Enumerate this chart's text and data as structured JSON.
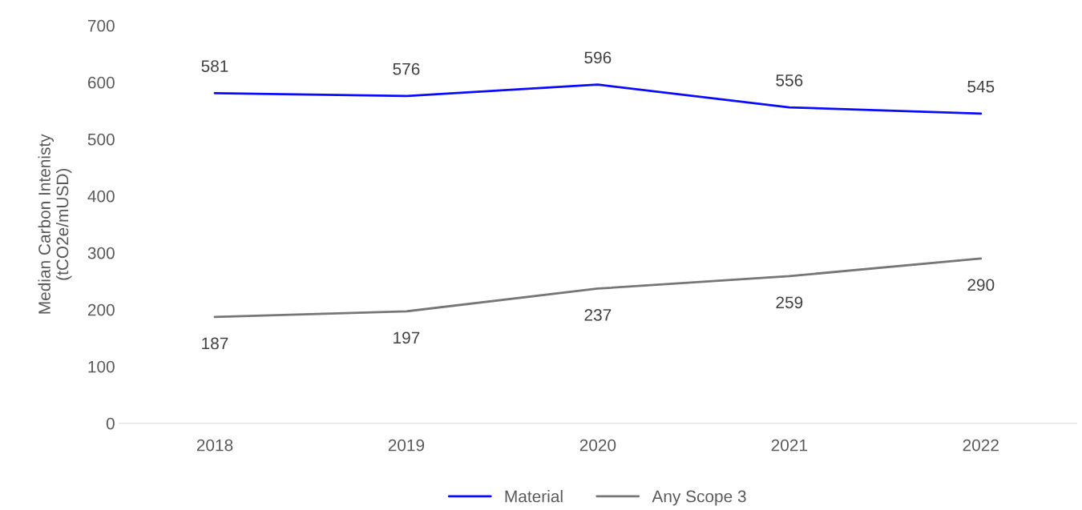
{
  "chart_data": {
    "type": "line",
    "categories": [
      "2018",
      "2019",
      "2020",
      "2021",
      "2022"
    ],
    "series": [
      {
        "name": "Material",
        "color": "#0a0aff",
        "values": [
          581,
          576,
          596,
          556,
          545
        ]
      },
      {
        "name": "Any Scope 3",
        "color": "#767676",
        "values": [
          187,
          197,
          237,
          259,
          290
        ]
      }
    ],
    "ylabel": "Median Carbon Intenisty\n(tCO2e/mUSD)",
    "ylim": [
      0,
      700
    ],
    "yticks": [
      0,
      100,
      200,
      300,
      400,
      500,
      600,
      700
    ],
    "grid": false,
    "legend": "bottom",
    "data_labels": true,
    "marker": "none",
    "line_style": "solid"
  }
}
